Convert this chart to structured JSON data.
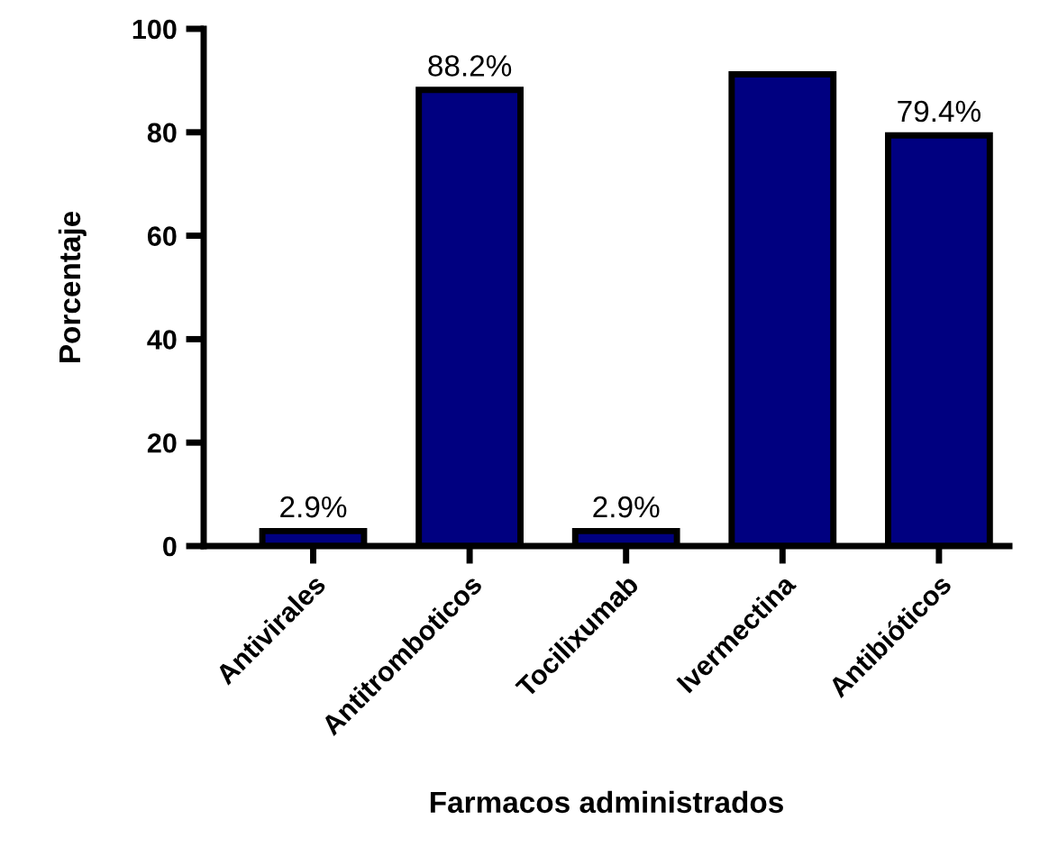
{
  "chart_data": {
    "type": "bar",
    "xlabel": "Farmacos administrados",
    "ylabel": "Porcentaje",
    "categories": [
      "Antivirales",
      "Antitromboticos",
      "Tocilixumab",
      "Ivermectina",
      "Antibióticos"
    ],
    "values": [
      2.9,
      88.2,
      2.9,
      91.2,
      79.4
    ],
    "value_labels": [
      "2.9%",
      "88.2%",
      "2.9%",
      null,
      "79.4%"
    ],
    "color": "#000080",
    "ylim": [
      0,
      100
    ],
    "yticks": [
      0,
      20,
      40,
      60,
      80,
      100
    ],
    "grid": false,
    "legend": false
  }
}
